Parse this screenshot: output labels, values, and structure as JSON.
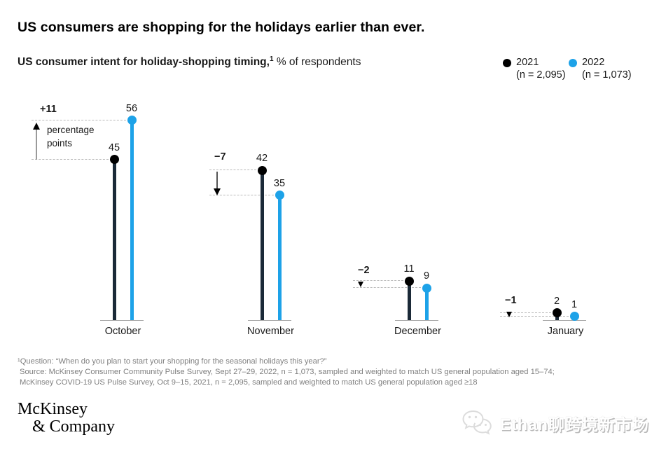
{
  "title": "US consumers are shopping for the holidays earlier than ever.",
  "subtitle": {
    "bold": "US consumer intent for holiday-shopping timing,",
    "superscript": "1",
    "rest": " % of respondents"
  },
  "legend": [
    {
      "label": "2021",
      "n": "(n = 2,095)",
      "color": "#000000"
    },
    {
      "label": "2022",
      "n": "(n = 1,073)",
      "color": "#1da2e8"
    }
  ],
  "chart_data": {
    "type": "bar",
    "subtype": "lollipop",
    "categories": [
      "October",
      "November",
      "December",
      "January"
    ],
    "series": [
      {
        "name": "2021",
        "color": "#000000",
        "stem_color": "#1b2a38",
        "values": [
          45,
          42,
          11,
          2
        ]
      },
      {
        "name": "2022",
        "color": "#1da2e8",
        "stem_color": "#1da2e8",
        "values": [
          56,
          35,
          9,
          1
        ]
      }
    ],
    "diff_labels": [
      "+11",
      "−7",
      "−2",
      "−1"
    ],
    "diff_annotation_line1": "percentage",
    "diff_annotation_line2": "points",
    "ylabel": "% of respondents",
    "ylim": [
      0,
      60
    ],
    "grid": false,
    "legend_position": "top-right"
  },
  "footnote": {
    "line1": "¹Question: “When do you plan to start your shopping for the seasonal holidays this year?”",
    "line2": "Source: McKinsey Consumer Community Pulse Survey, Sept 27–29, 2022, n = 1,073, sampled and weighted to match US general population aged 15–74;",
    "line3": "McKinsey COVID-19 US Pulse Survey, Oct 9–15, 2021, n = 2,095, sampled and weighted to match US general population aged ≥18"
  },
  "logo": {
    "line1": "McKinsey",
    "line2": "& Company"
  },
  "watermark": {
    "icon": "wechat-icon",
    "text": "Ethan聊跨境新市场"
  },
  "colors": {
    "accent_blue": "#1da2e8",
    "dark_stem": "#1b2a38",
    "dashed_gray": "#b9b9b9",
    "baseline_gray": "#a9a9a9",
    "footnote_gray": "#808080"
  }
}
